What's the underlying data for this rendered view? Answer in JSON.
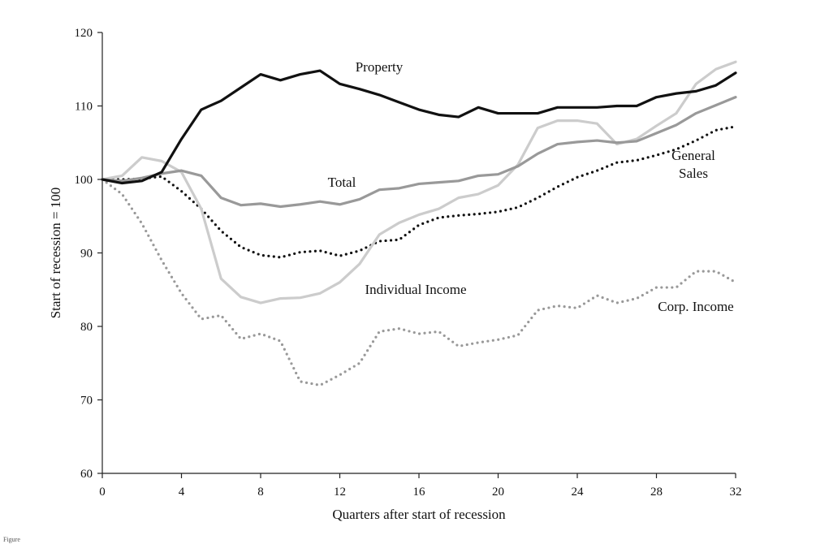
{
  "chart_data": {
    "type": "line",
    "title": "",
    "xlabel": "Quarters after start of recession",
    "ylabel": "Start of recession = 100",
    "xlim": [
      0,
      32
    ],
    "ylim": [
      60,
      120
    ],
    "xticks": [
      0,
      4,
      8,
      12,
      16,
      20,
      24,
      28,
      32
    ],
    "xtick_labels": [
      "0",
      "4",
      "8",
      "12",
      "16",
      "20",
      "24",
      "28",
      "32"
    ],
    "yticks": [
      60,
      70,
      80,
      90,
      100,
      110,
      120
    ],
    "ytick_labels": [
      "60",
      "70",
      "80",
      "90",
      "100",
      "110",
      "120"
    ],
    "grid": false,
    "legend": "none (series labelled inline)",
    "x": [
      0,
      1,
      2,
      3,
      4,
      5,
      6,
      7,
      8,
      9,
      10,
      11,
      12,
      13,
      14,
      15,
      16,
      17,
      18,
      19,
      20,
      21,
      22,
      23,
      24,
      25,
      26,
      27,
      28,
      29,
      30,
      31,
      32
    ],
    "series": [
      {
        "name": "Property",
        "label_lines": [
          "Property"
        ],
        "color": "#111111",
        "style": "solid",
        "values": [
          100,
          99.5,
          99.8,
          101,
          105.5,
          109.5,
          110.7,
          112.5,
          114.3,
          113.5,
          114.3,
          114.8,
          113,
          112.3,
          111.5,
          110.5,
          109.5,
          108.8,
          108.5,
          109.8,
          109,
          109,
          109,
          109.8,
          109.8,
          109.8,
          110,
          110,
          111.2,
          111.7,
          112,
          112.8,
          114.5
        ]
      },
      {
        "name": "Total",
        "label_lines": [
          "Total"
        ],
        "color": "#999999",
        "style": "solid",
        "values": [
          100,
          99.8,
          100.2,
          100.8,
          101.2,
          100.5,
          97.5,
          96.5,
          96.7,
          96.3,
          96.6,
          97,
          96.6,
          97.3,
          98.6,
          98.8,
          99.4,
          99.6,
          99.8,
          100.5,
          100.7,
          101.8,
          103.5,
          104.8,
          105.1,
          105.3,
          105,
          105.2,
          106.3,
          107.4,
          109,
          110.1,
          111.2
        ]
      },
      {
        "name": "Individual Income",
        "label_lines": [
          "Individual Income"
        ],
        "color": "#cccccc",
        "style": "solid",
        "values": [
          100,
          100.5,
          103,
          102.5,
          101,
          96,
          86.5,
          84,
          83.2,
          83.8,
          83.9,
          84.5,
          86,
          88.5,
          92.5,
          94.1,
          95.2,
          96,
          97.5,
          98,
          99.2,
          102,
          107,
          108,
          108,
          107.6,
          104.8,
          105.5,
          107.3,
          109,
          113,
          115,
          116
        ]
      },
      {
        "name": "General Sales",
        "label_lines": [
          "General",
          "Sales"
        ],
        "color": "#111111",
        "style": "dotted",
        "values": [
          100,
          100,
          100.1,
          100.4,
          98.4,
          96,
          93,
          90.8,
          89.7,
          89.4,
          90.1,
          90.3,
          89.6,
          90.3,
          91.6,
          91.8,
          93.8,
          94.8,
          95.1,
          95.3,
          95.6,
          96.2,
          97.5,
          99,
          100.3,
          101.2,
          102.3,
          102.6,
          103.3,
          104.1,
          105.3,
          106.7,
          107.2
        ]
      },
      {
        "name": "Corp. Income",
        "label_lines": [
          "Corp. Income"
        ],
        "color": "#999999",
        "style": "dotted",
        "values": [
          100,
          98,
          94,
          89,
          84.5,
          81,
          81.5,
          78.3,
          79,
          78,
          72.5,
          72,
          73.4,
          75,
          79.3,
          79.7,
          79,
          79.3,
          77.3,
          77.8,
          78.2,
          78.8,
          82.2,
          82.8,
          82.5,
          84.2,
          83.2,
          83.8,
          85.3,
          85.3,
          87.5,
          87.5,
          86
        ]
      }
    ]
  },
  "footer": {
    "text": "Figure"
  }
}
